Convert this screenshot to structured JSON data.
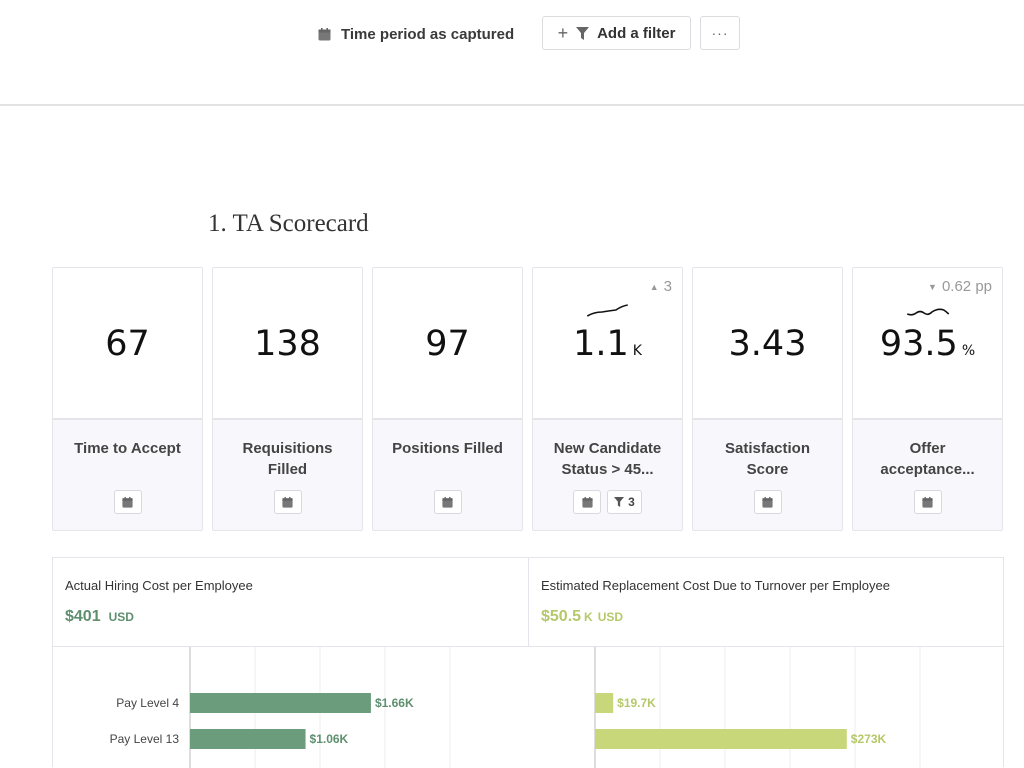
{
  "toolbar": {
    "time_period_label": "Time period as captured",
    "add_filter_label": "Add a filter",
    "more_label": "···"
  },
  "section": {
    "title": "1. TA Scorecard"
  },
  "cards": [
    {
      "value": "67",
      "unit": "",
      "label": "Time to Accept",
      "delta": "",
      "filter_count": ""
    },
    {
      "value": "138",
      "unit": "",
      "label": "Requisitions Filled",
      "delta": "",
      "filter_count": ""
    },
    {
      "value": "97",
      "unit": "",
      "label": "Positions Filled",
      "delta": "",
      "filter_count": ""
    },
    {
      "value": "1.1",
      "unit": "K",
      "label": "New Candidate Status > 45...",
      "delta": "3",
      "delta_direction": "up",
      "filter_count": "3"
    },
    {
      "value": "3.43",
      "unit": "",
      "label": "Satisfaction Score",
      "delta": "",
      "filter_count": ""
    },
    {
      "value": "93.5",
      "unit": "%",
      "label": "Offer acceptance...",
      "delta": "0.62 pp",
      "delta_direction": "down",
      "filter_count": ""
    }
  ],
  "panel": {
    "left": {
      "title": "Actual Hiring Cost per Employee",
      "value": "$401",
      "magnitude": "",
      "currency": "USD",
      "color": "#6b9c7c"
    },
    "right": {
      "title": "Estimated Replacement Cost Due to Turnover per Employee",
      "value": "$50.5",
      "magnitude": "K",
      "currency": "USD",
      "color": "#bccf6c"
    }
  },
  "chart_data": [
    {
      "type": "bar",
      "orientation": "horizontal",
      "categories": [
        "Pay Level 4",
        "Pay Level 13"
      ],
      "values": [
        1660,
        1060
      ],
      "labels": [
        "$1.66K",
        "$1.06K"
      ],
      "color": "#6b9c7c"
    },
    {
      "type": "bar",
      "orientation": "horizontal",
      "categories": [
        "Pay Level 4",
        "Pay Level 13"
      ],
      "values": [
        19700,
        273000
      ],
      "labels": [
        "$19.7K",
        "$273K"
      ],
      "color": "#c7d77a"
    }
  ],
  "colors": {
    "left_label": "#5e8f6f",
    "right_label": "#b5c86a"
  },
  "icons": {
    "calendar": "calendar-icon",
    "filter": "filter-icon",
    "more": "more-icon"
  }
}
